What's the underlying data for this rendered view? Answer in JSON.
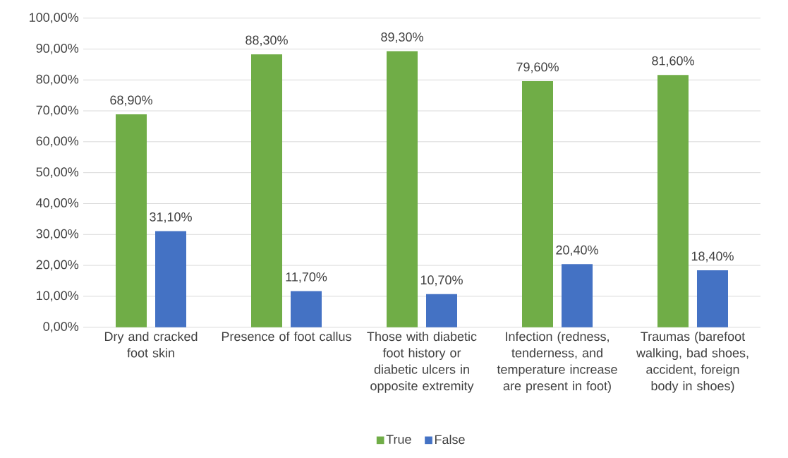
{
  "chart_data": {
    "type": "bar",
    "categories": [
      "Dry and cracked foot skin",
      "Presence of foot callus",
      "Those with diabetic foot history or diabetic ulcers in opposite extremity",
      "Infection (redness, tenderness, and temperature increase are present in foot)",
      "Traumas (barefoot walking, bad shoes, accident, foreign body in shoes)"
    ],
    "series": [
      {
        "name": "True",
        "color": "#70ad47",
        "values": [
          68.9,
          88.3,
          89.3,
          79.6,
          81.6
        ],
        "value_labels": [
          "68,90%",
          "88,30%",
          "89,30%",
          "79,60%",
          "81,60%"
        ]
      },
      {
        "name": "False",
        "color": "#4472c4",
        "values": [
          31.1,
          11.7,
          10.7,
          20.4,
          18.4
        ],
        "value_labels": [
          "31,10%",
          "11,70%",
          "10,70%",
          "20,40%",
          "18,40%"
        ]
      }
    ],
    "ylim": [
      0,
      100
    ],
    "yticks": [
      {
        "value": 0,
        "label": "0,00%"
      },
      {
        "value": 10,
        "label": "10,00%"
      },
      {
        "value": 20,
        "label": "20,00%"
      },
      {
        "value": 30,
        "label": "30,00%"
      },
      {
        "value": 40,
        "label": "40,00%"
      },
      {
        "value": 50,
        "label": "50,00%"
      },
      {
        "value": 60,
        "label": "60,00%"
      },
      {
        "value": 70,
        "label": "70,00%"
      },
      {
        "value": 80,
        "label": "80,00%"
      },
      {
        "value": 90,
        "label": "90,00%"
      },
      {
        "value": 100,
        "label": "100,00%"
      }
    ],
    "grid": "y",
    "legend": "bottom"
  }
}
